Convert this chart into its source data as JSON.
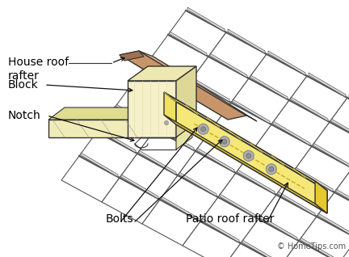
{
  "background_color": "#ffffff",
  "labels": {
    "house_roof_rafter": "House roof\nrafter",
    "block": "Block",
    "notch": "Notch",
    "bolts": "Bolts",
    "patio_roof_rafter": "Patio roof rafter",
    "copyright": "© HomeTips.com"
  },
  "colors": {
    "house_rafter_fill": "#c8956a",
    "house_rafter_light": "#d4a880",
    "patio_rafter_top": "#f5e878",
    "patio_rafter_front": "#f0e060",
    "patio_rafter_side": "#e8c830",
    "block_front": "#f5f0c8",
    "block_top": "#ece8b0",
    "block_right": "#ddd898",
    "outline": "#333333",
    "tile_outline": "#555555",
    "tile_fill": "#ffffff",
    "bolt_fill": "#b0b0b0",
    "bolt_outline": "#888888",
    "dashed": "#c8a820",
    "text_color": "#000000",
    "arrow_color": "#111111",
    "copyright_color": "#555555",
    "ledger_fill": "#f0ecb8",
    "ledger_side": "#e0dc90",
    "wall_fill": "#f8f8f0",
    "notch_fill": "#e8e4a8"
  },
  "font_size_labels": 10,
  "font_size_copyright": 7
}
